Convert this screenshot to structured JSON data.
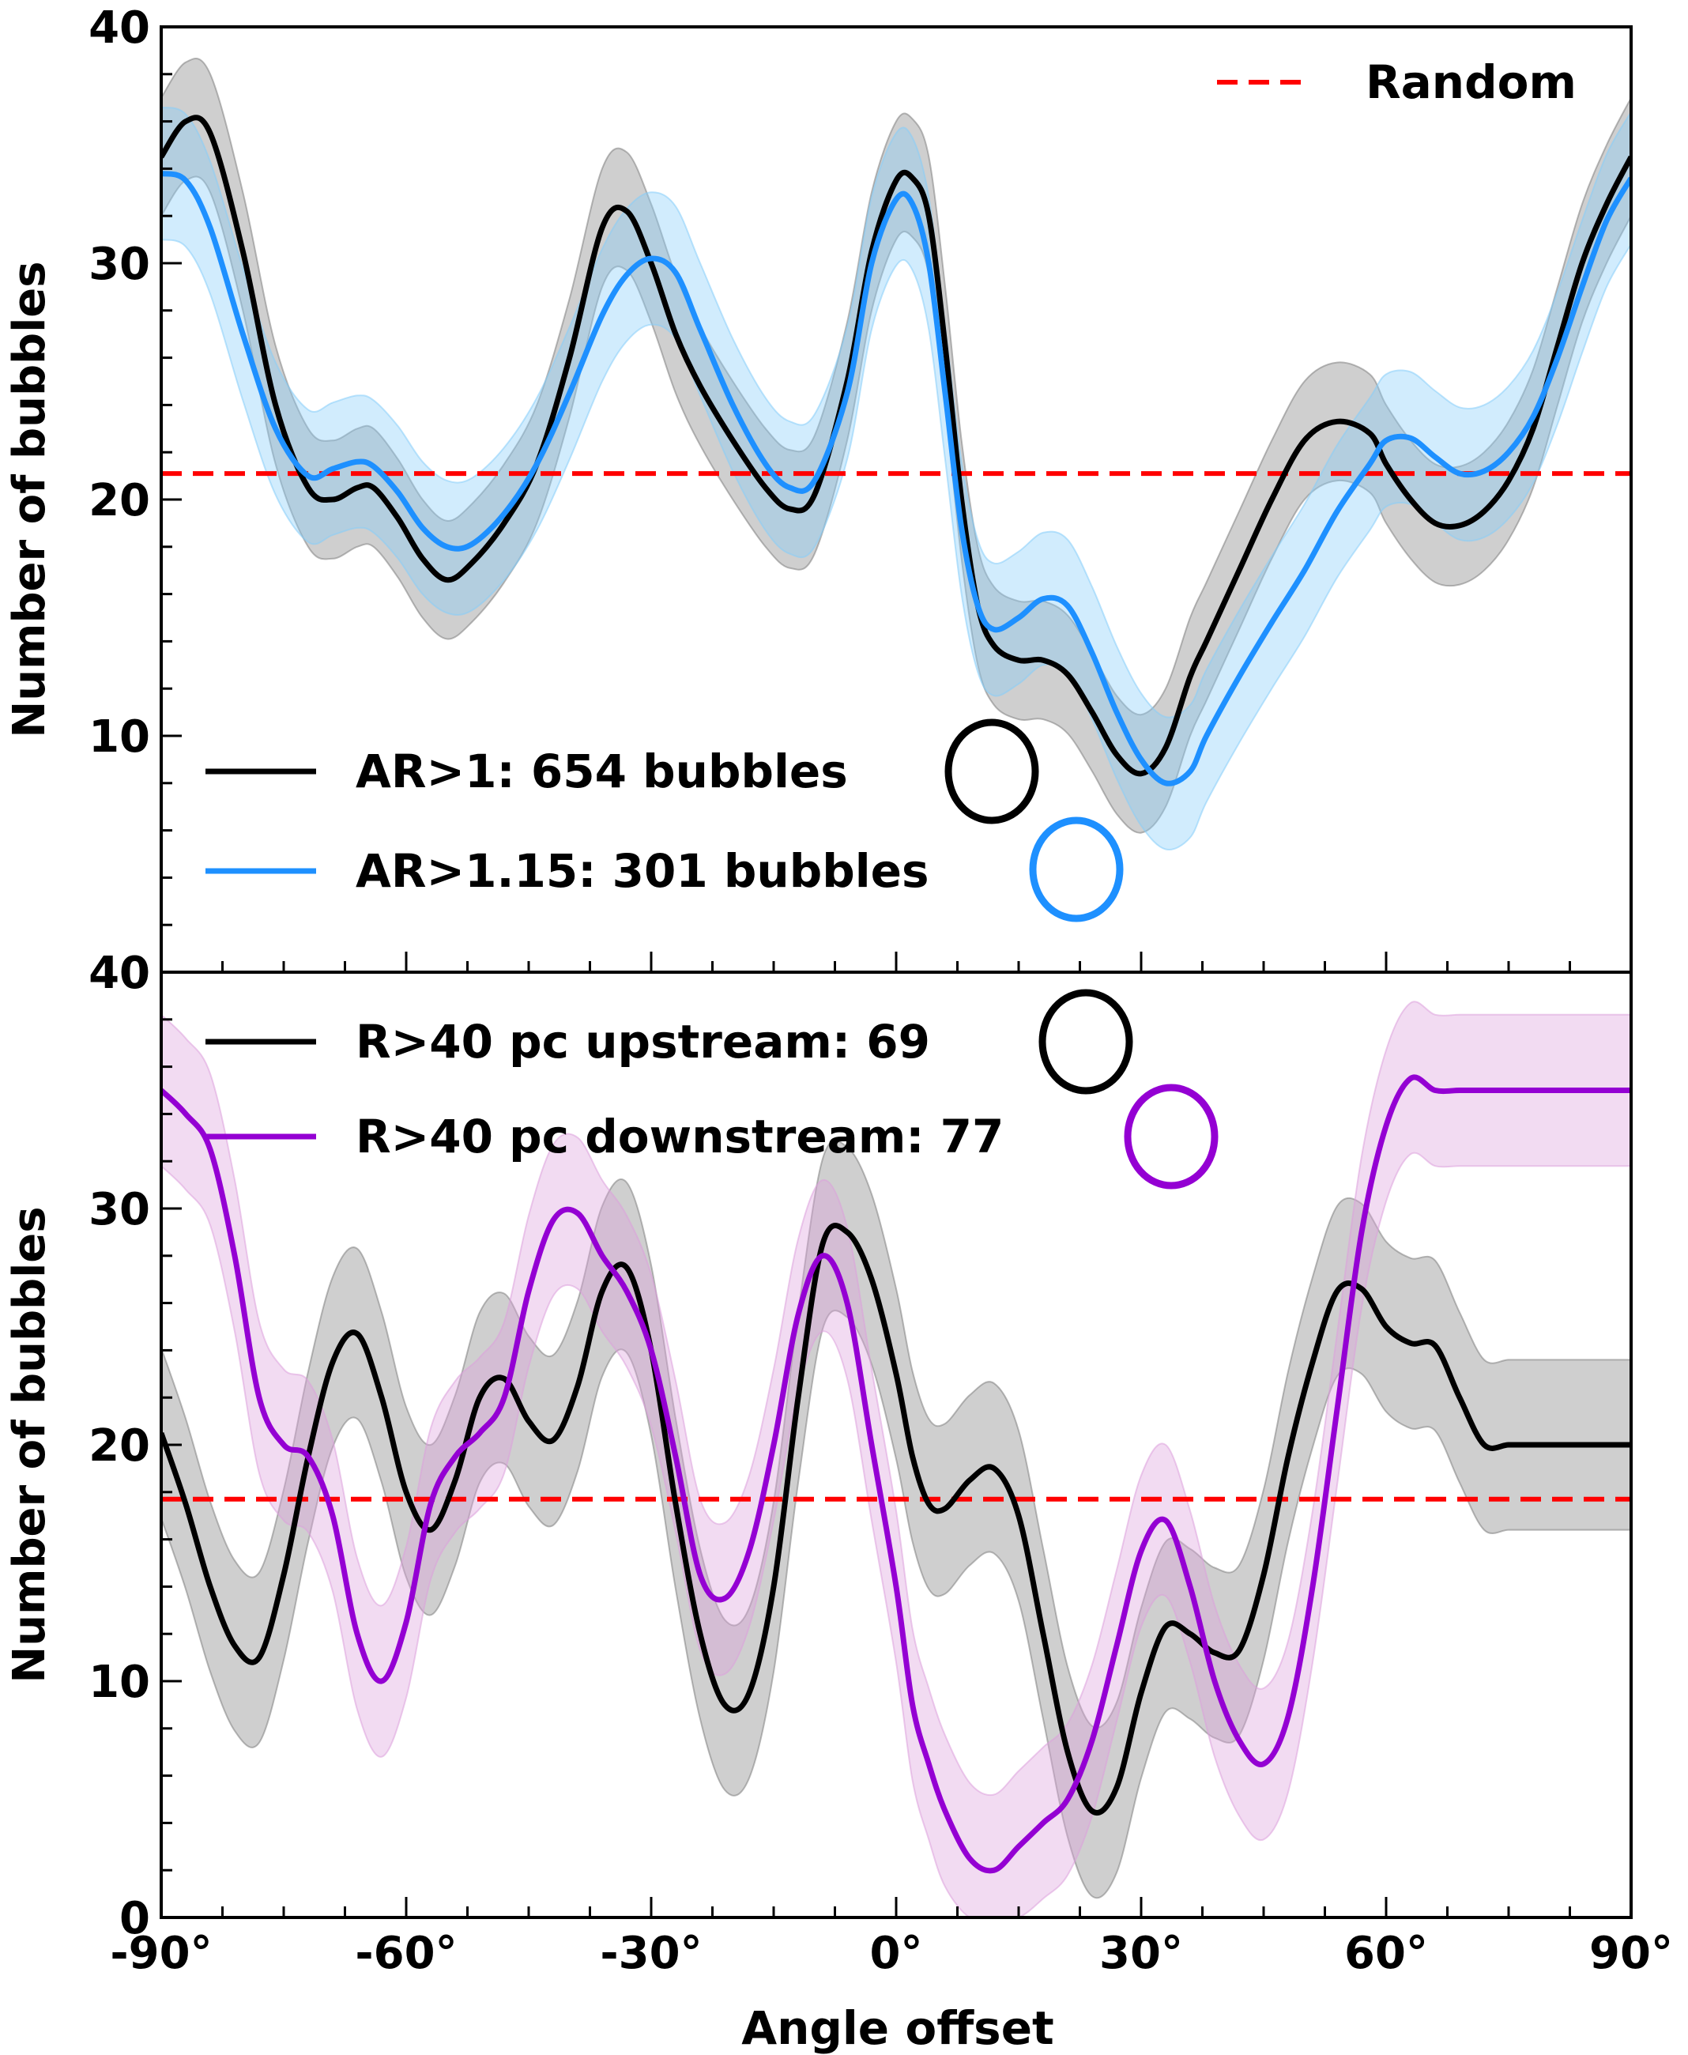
{
  "colors": {
    "random": "#ff0000",
    "black": "#000000",
    "blue": "#1e90ff",
    "purple": "#9400d3",
    "band_black": "#808080",
    "band_blue": "#87cefa",
    "band_purple": "#dda0dd"
  },
  "shared_xlabel": "Angle offset",
  "chart_data": [
    {
      "type": "line",
      "title": "",
      "xlabel": "",
      "ylabel": "Number of bubbles",
      "xlim": [
        -90,
        90
      ],
      "ylim": [
        0,
        40
      ],
      "grid": false,
      "xticks": [
        -90,
        -60,
        -30,
        0,
        30,
        60,
        90
      ],
      "xtick_labels": [
        "-90°",
        "-60°",
        "-30°",
        "0°",
        "30°",
        "60°",
        "90°"
      ],
      "yticks": [
        0,
        10,
        20,
        30,
        40
      ],
      "ytick_labels": [
        "0",
        "10",
        "20",
        "30",
        "40"
      ],
      "random_level": 21.1,
      "random_label": "Random",
      "random_legend_position": "top-right",
      "legend_position": "lower-left",
      "series": [
        {
          "name": "AR>1: 654 bubbles",
          "color": "black",
          "band_color": "band_black",
          "band_halfwidth": 2.5,
          "marker_icon": "black-circle-icon",
          "x": [
            -90,
            -87,
            -84,
            -80,
            -76,
            -72,
            -69,
            -66,
            -64,
            -61,
            -58,
            -55,
            -52,
            -48,
            -44,
            -40,
            -36,
            -33,
            -30,
            -27,
            -24,
            -20,
            -16,
            -13,
            -10,
            -6,
            -3,
            0,
            2,
            4,
            6,
            8,
            10,
            12,
            15,
            18,
            21,
            24,
            27,
            30,
            33,
            36,
            38,
            42,
            46,
            50,
            54,
            58,
            60,
            63,
            66,
            69,
            72,
            75,
            78,
            81,
            84,
            87,
            90
          ],
          "y": [
            34.5,
            36.0,
            35.5,
            30.5,
            24.0,
            20.5,
            20.0,
            20.5,
            20.5,
            19.2,
            17.5,
            16.6,
            17.3,
            19.0,
            21.5,
            26.0,
            31.5,
            32.2,
            30.0,
            27.0,
            24.8,
            22.5,
            20.5,
            19.6,
            20.2,
            25.0,
            30.5,
            33.5,
            33.6,
            32.0,
            26.5,
            20.0,
            15.5,
            13.8,
            13.2,
            13.2,
            12.6,
            11.0,
            9.2,
            8.4,
            9.5,
            12.5,
            14.0,
            17.0,
            20.0,
            22.5,
            23.3,
            22.8,
            21.5,
            20.0,
            19.0,
            18.9,
            19.5,
            20.8,
            23.0,
            26.5,
            30.0,
            32.5,
            34.5
          ]
        },
        {
          "name": "AR>1.15: 301 bubbles",
          "color": "blue",
          "band_color": "band_blue",
          "band_halfwidth": 2.8,
          "marker_icon": "blue-circle-icon",
          "x": [
            -90,
            -87,
            -84,
            -80,
            -76,
            -72,
            -69,
            -66,
            -64,
            -61,
            -58,
            -55,
            -52,
            -48,
            -44,
            -40,
            -36,
            -33,
            -30,
            -27,
            -24,
            -20,
            -16,
            -13,
            -10,
            -6,
            -3,
            0,
            2,
            4,
            6,
            8,
            10,
            12,
            15,
            18,
            21,
            24,
            27,
            30,
            33,
            36,
            38,
            42,
            46,
            50,
            54,
            58,
            60,
            63,
            66,
            69,
            72,
            75,
            78,
            81,
            84,
            87,
            90
          ],
          "y": [
            33.8,
            33.5,
            31.5,
            27.0,
            23.0,
            21.0,
            21.3,
            21.6,
            21.4,
            20.3,
            18.8,
            18.0,
            18.1,
            19.4,
            21.5,
            24.5,
            27.8,
            29.5,
            30.2,
            29.6,
            27.2,
            24.0,
            21.5,
            20.5,
            20.8,
            24.5,
            30.0,
            32.7,
            32.5,
            30.0,
            24.5,
            18.8,
            15.5,
            14.5,
            15.0,
            15.8,
            15.5,
            13.5,
            11.0,
            9.0,
            8.0,
            8.5,
            10.0,
            12.5,
            14.8,
            17.0,
            19.5,
            21.5,
            22.5,
            22.6,
            21.8,
            21.1,
            21.2,
            22.0,
            23.5,
            26.0,
            29.0,
            31.8,
            33.6
          ]
        }
      ]
    },
    {
      "type": "line",
      "title": "",
      "xlabel": "Angle offset",
      "ylabel": "Number of bubbles",
      "xlim": [
        -90,
        90
      ],
      "ylim": [
        0,
        40
      ],
      "grid": false,
      "xticks": [
        -90,
        -60,
        -30,
        0,
        30,
        60,
        90
      ],
      "xtick_labels": [
        "-90°",
        "-60°",
        "-30°",
        "0°",
        "30°",
        "60°",
        "90°"
      ],
      "yticks": [
        0,
        10,
        20,
        30,
        40
      ],
      "ytick_labels": [
        "0",
        "10",
        "20",
        "30",
        "40"
      ],
      "random_level": 17.7,
      "legend_position": "top-left",
      "series": [
        {
          "name": "R>40 pc upstream: 69",
          "color": "black",
          "band_color": "band_black",
          "band_halfwidth": 3.6,
          "marker_icon": "black-circle-icon",
          "x": [
            -90,
            -87,
            -84,
            -81,
            -78,
            -75,
            -72,
            -69,
            -66,
            -63,
            -60,
            -57,
            -54,
            -51,
            -48,
            -45,
            -42,
            -39,
            -36,
            -33,
            -30,
            -27,
            -24,
            -21,
            -18,
            -15,
            -12,
            -9,
            -6,
            -3,
            0,
            2,
            4,
            6,
            9,
            12,
            15,
            18,
            21,
            24,
            27,
            30,
            33,
            36,
            39,
            42,
            45,
            48,
            51,
            54,
            57,
            60,
            63,
            66,
            69,
            72,
            75,
            78,
            81,
            84,
            87,
            90
          ],
          "y": [
            20.5,
            17.5,
            14.0,
            11.5,
            11.0,
            14.5,
            19.5,
            23.5,
            24.7,
            22.0,
            18.0,
            16.4,
            18.5,
            22.0,
            22.8,
            21.0,
            20.2,
            22.5,
            26.5,
            27.5,
            24.0,
            17.5,
            12.0,
            9.0,
            9.5,
            14.0,
            22.0,
            28.5,
            29.0,
            27.0,
            23.0,
            19.5,
            17.5,
            17.3,
            18.5,
            19.0,
            17.0,
            12.0,
            7.0,
            4.5,
            5.5,
            9.5,
            12.3,
            12.0,
            11.2,
            11.3,
            14.5,
            19.5,
            23.5,
            26.5,
            26.6,
            25.0,
            24.3,
            24.2,
            22.0,
            20.0,
            20.0,
            20.0,
            20.0,
            20.0,
            20.0,
            20.0
          ]
        },
        {
          "name": "R>40 pc downstream: 77",
          "color": "purple",
          "band_color": "band_purple",
          "band_halfwidth": 3.2,
          "marker_icon": "purple-circle-icon",
          "x": [
            -90,
            -87,
            -84,
            -81,
            -78,
            -75,
            -72,
            -69,
            -66,
            -63,
            -60,
            -57,
            -54,
            -51,
            -48,
            -45,
            -42,
            -39,
            -36,
            -33,
            -30,
            -27,
            -24,
            -21,
            -18,
            -15,
            -12,
            -9,
            -6,
            -3,
            0,
            2,
            4,
            6,
            9,
            12,
            15,
            18,
            21,
            24,
            27,
            30,
            33,
            36,
            39,
            42,
            45,
            48,
            51,
            54,
            57,
            60,
            63,
            66,
            69,
            72,
            75,
            78,
            81,
            84,
            87,
            90
          ],
          "y": [
            35.0,
            34.0,
            32.5,
            28.0,
            22.0,
            20.0,
            19.5,
            17.0,
            12.0,
            10.0,
            12.5,
            17.5,
            19.5,
            20.5,
            22.0,
            26.5,
            29.5,
            29.8,
            28.0,
            26.5,
            24.0,
            19.5,
            14.5,
            13.5,
            15.5,
            20.0,
            25.5,
            28.0,
            26.0,
            20.0,
            14.0,
            9.0,
            6.5,
            4.5,
            2.5,
            2.0,
            3.0,
            4.0,
            5.0,
            7.5,
            11.5,
            15.5,
            16.8,
            14.0,
            10.0,
            7.5,
            6.5,
            8.5,
            14.0,
            21.5,
            29.0,
            33.5,
            35.5,
            35.0,
            35.0,
            35.0,
            35.0,
            35.0,
            35.0,
            35.0,
            35.0,
            35.0
          ]
        }
      ]
    }
  ]
}
